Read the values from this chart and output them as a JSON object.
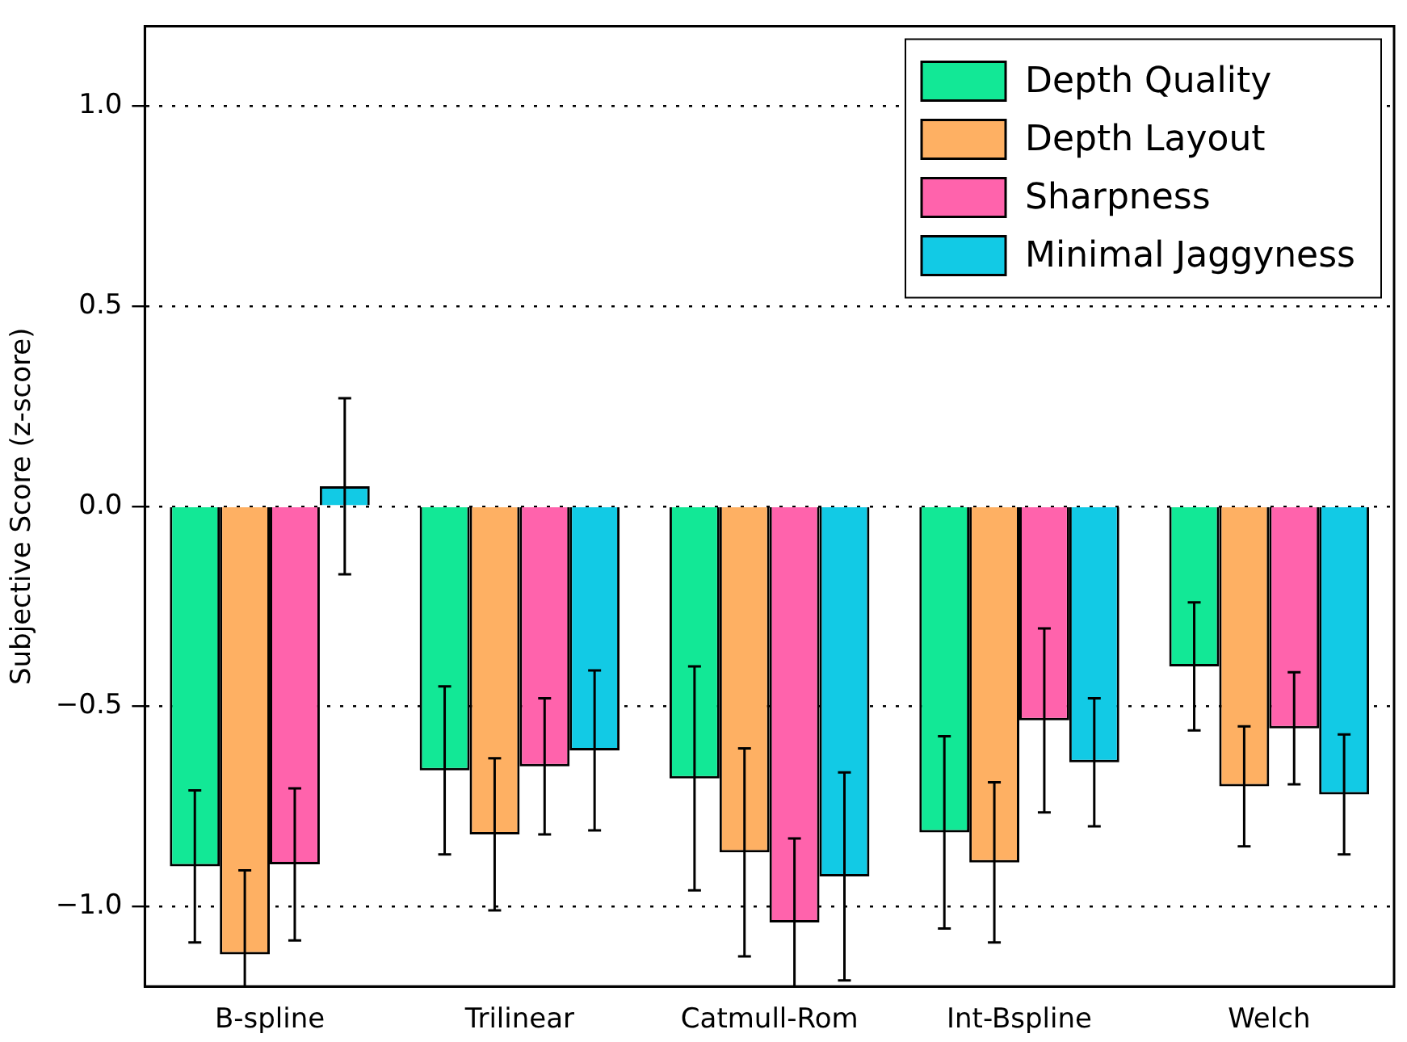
{
  "chart_data": {
    "type": "bar",
    "ylabel": "Subjective Score (z-score)",
    "categories": [
      "B-spline",
      "Trilinear",
      "Catmull-Rom",
      "Int-Bspline",
      "Welch"
    ],
    "series": [
      {
        "name": "Depth Quality",
        "color": "#12e896",
        "values": [
          -0.9,
          -0.66,
          -0.68,
          -0.815,
          -0.4
        ],
        "errors": [
          0.19,
          0.21,
          0.28,
          0.24,
          0.16
        ]
      },
      {
        "name": "Depth Layout",
        "color": "#feb063",
        "values": [
          -1.12,
          -0.82,
          -0.865,
          -0.89,
          -0.7
        ],
        "errors": [
          0.21,
          0.19,
          0.26,
          0.2,
          0.15
        ]
      },
      {
        "name": "Sharpness",
        "color": "#ff63ac",
        "values": [
          -0.895,
          -0.65,
          -1.04,
          -0.535,
          -0.555
        ],
        "errors": [
          0.19,
          0.17,
          0.21,
          0.23,
          0.14
        ]
      },
      {
        "name": "Minimal Jaggyness",
        "color": "#12cae5",
        "values": [
          0.05,
          -0.61,
          -0.925,
          -0.64,
          -0.72
        ],
        "errors": [
          0.22,
          0.2,
          0.26,
          0.16,
          0.15
        ]
      }
    ],
    "ylim": [
      -1.2,
      1.2
    ],
    "yticks": [
      {
        "value": -1,
        "label": "−1.0"
      },
      {
        "value": -0.5,
        "label": "−0.5"
      },
      {
        "value": 0,
        "label": "0.0"
      },
      {
        "value": 0.5,
        "label": "0.5"
      },
      {
        "value": 1,
        "label": "1.0"
      }
    ],
    "grid": "y",
    "legend": "top right"
  }
}
